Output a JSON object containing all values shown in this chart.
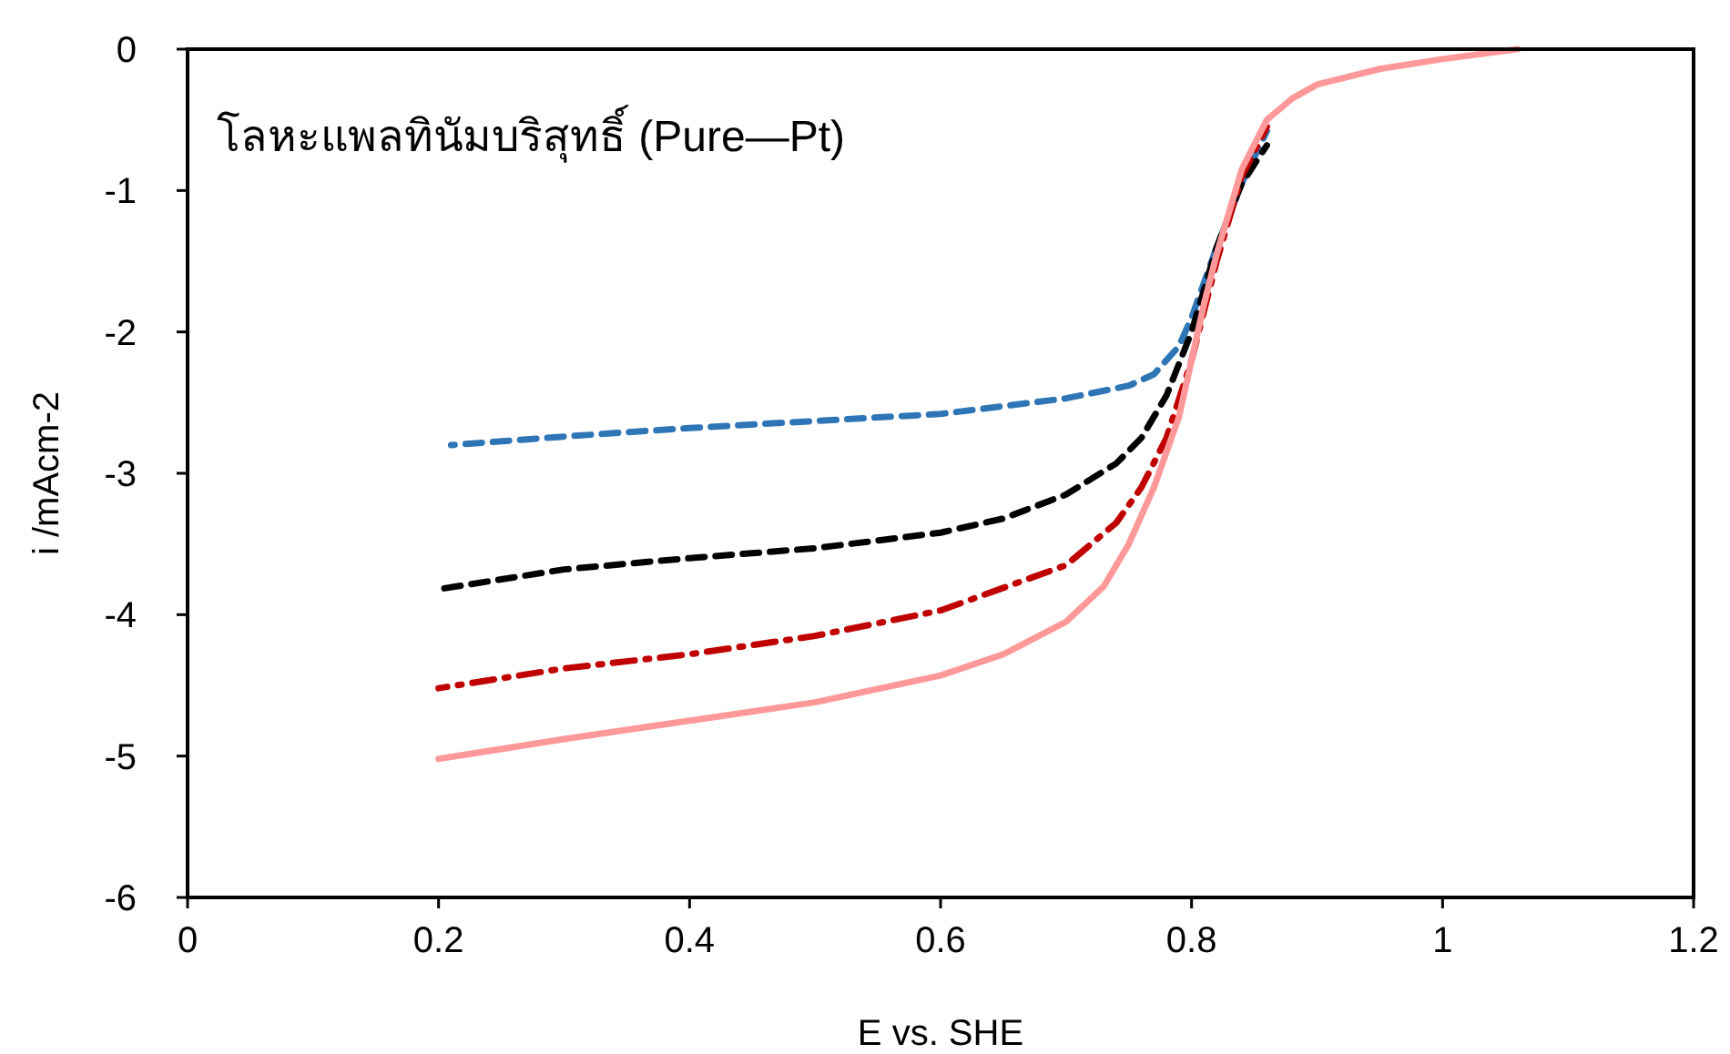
{
  "chart_data": {
    "type": "line",
    "xlabel": "E vs. SHE",
    "ylabel": "i /mAcm-2",
    "annotations": [
      "โลหะแพลทินัมบริสุทธิ์ (Pure—Pt)"
    ],
    "xlim": [
      0,
      1.2
    ],
    "ylim": [
      -6,
      0
    ],
    "xticks": [
      0,
      0.2,
      0.4,
      0.6,
      0.8,
      1,
      1.2
    ],
    "yticks": [
      -6,
      -5,
      -4,
      -3,
      -2,
      -1,
      0
    ],
    "grid": false,
    "marker": "none",
    "series": [
      {
        "color": "#2e75b6",
        "line_style": "dashed",
        "x": [
          0.21,
          0.3,
          0.4,
          0.5,
          0.6,
          0.7,
          0.75,
          0.77,
          0.79,
          0.8,
          0.82,
          0.84,
          0.86
        ],
        "values": [
          -2.8,
          -2.74,
          -2.68,
          -2.63,
          -2.58,
          -2.47,
          -2.38,
          -2.3,
          -2.1,
          -1.9,
          -1.4,
          -0.95,
          -0.58
        ]
      },
      {
        "color": "#000000",
        "line_style": "dashed",
        "x": [
          0.2,
          0.3,
          0.4,
          0.5,
          0.6,
          0.65,
          0.7,
          0.74,
          0.76,
          0.78,
          0.8,
          0.82,
          0.84,
          0.86
        ],
        "values": [
          -3.82,
          -3.68,
          -3.6,
          -3.53,
          -3.42,
          -3.32,
          -3.15,
          -2.93,
          -2.75,
          -2.45,
          -2.0,
          -1.4,
          -0.95,
          -0.68
        ]
      },
      {
        "color": "#c00000",
        "line_style": "dashdot",
        "x": [
          0.2,
          0.3,
          0.4,
          0.5,
          0.6,
          0.7,
          0.74,
          0.76,
          0.78,
          0.8,
          0.82,
          0.84,
          0.86
        ],
        "values": [
          -4.52,
          -4.38,
          -4.28,
          -4.15,
          -3.97,
          -3.65,
          -3.35,
          -3.1,
          -2.75,
          -2.2,
          -1.5,
          -0.9,
          -0.55
        ]
      },
      {
        "color": "#ff9999",
        "line_style": "solid",
        "x": [
          0.2,
          0.3,
          0.4,
          0.5,
          0.6,
          0.65,
          0.7,
          0.73,
          0.75,
          0.77,
          0.79,
          0.8,
          0.81,
          0.82,
          0.84,
          0.86,
          0.88,
          0.9,
          0.95,
          1.0,
          1.06
        ],
        "values": [
          -5.02,
          -4.88,
          -4.75,
          -4.62,
          -4.43,
          -4.28,
          -4.05,
          -3.8,
          -3.5,
          -3.1,
          -2.6,
          -2.2,
          -1.8,
          -1.45,
          -0.85,
          -0.5,
          -0.35,
          -0.25,
          -0.14,
          -0.07,
          0
        ]
      }
    ]
  }
}
